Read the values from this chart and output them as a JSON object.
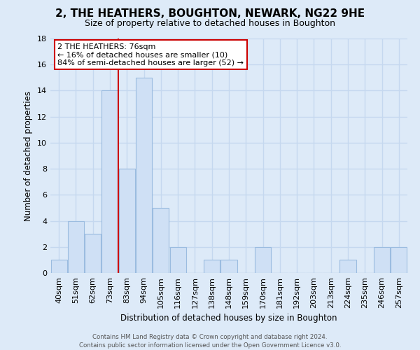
{
  "title": "2, THE HEATHERS, BOUGHTON, NEWARK, NG22 9HE",
  "subtitle": "Size of property relative to detached houses in Boughton",
  "xlabel": "Distribution of detached houses by size in Boughton",
  "ylabel": "Number of detached properties",
  "bar_labels": [
    "40sqm",
    "51sqm",
    "62sqm",
    "73sqm",
    "83sqm",
    "94sqm",
    "105sqm",
    "116sqm",
    "127sqm",
    "138sqm",
    "148sqm",
    "159sqm",
    "170sqm",
    "181sqm",
    "192sqm",
    "203sqm",
    "213sqm",
    "224sqm",
    "235sqm",
    "246sqm",
    "257sqm"
  ],
  "bar_values": [
    1,
    4,
    3,
    14,
    8,
    15,
    5,
    2,
    0,
    1,
    1,
    0,
    2,
    0,
    0,
    0,
    0,
    1,
    0,
    2,
    2
  ],
  "bar_color": "#cfe0f5",
  "bar_edge_color": "#9bbce0",
  "reference_line_color": "#cc0000",
  "reference_line_index": 3.5,
  "ylim": [
    0,
    18
  ],
  "yticks": [
    0,
    2,
    4,
    6,
    8,
    10,
    12,
    14,
    16,
    18
  ],
  "annotation_title": "2 THE HEATHERS: 76sqm",
  "annotation_line1": "← 16% of detached houses are smaller (10)",
  "annotation_line2": "84% of semi-detached houses are larger (52) →",
  "annotation_box_color": "#ffffff",
  "annotation_box_edge": "#cc0000",
  "footer_line1": "Contains HM Land Registry data © Crown copyright and database right 2024.",
  "footer_line2": "Contains public sector information licensed under the Open Government Licence v3.0.",
  "background_color": "#ddeaf8",
  "grid_color": "#c5d8ef",
  "title_fontsize": 11,
  "subtitle_fontsize": 9
}
